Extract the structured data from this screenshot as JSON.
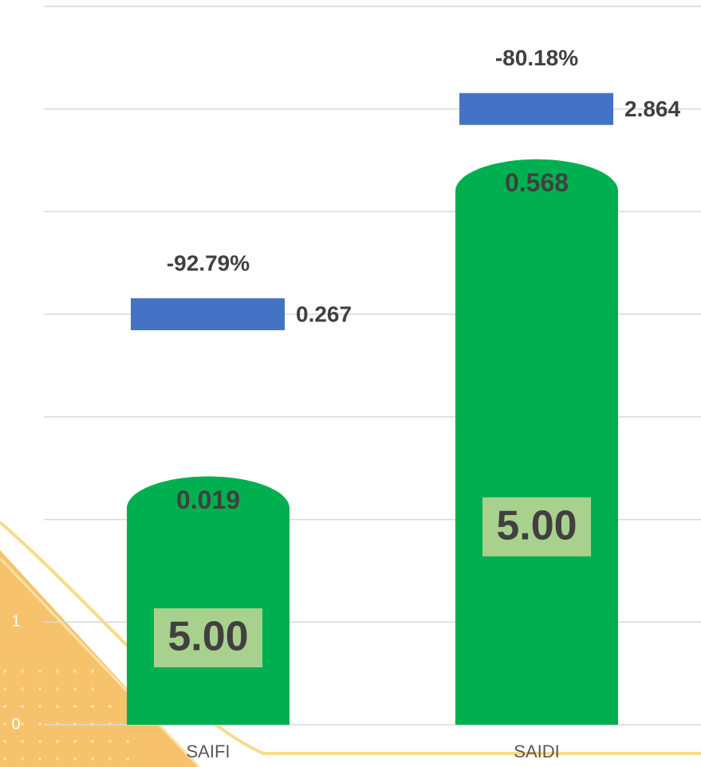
{
  "chart_data": {
    "type": "bar",
    "categories": [
      "SAIFI",
      "SAIDI"
    ],
    "series": [
      {
        "color": "#00b050",
        "values": [
          2.42,
          5.51
        ]
      },
      {
        "color": "#4472c4",
        "values": [
          4.0,
          6.0
        ]
      }
    ],
    "bar_labels": [
      "0.019",
      "0.568"
    ],
    "big_labels": [
      "5.00",
      "5.00"
    ],
    "marker_labels": [
      "0.267",
      "2.864"
    ],
    "change_labels": [
      "-92.79%",
      "-80.18%"
    ],
    "ylim": [
      0,
      7
    ],
    "yticks": [
      0,
      1,
      2,
      3,
      4,
      5,
      6,
      7
    ],
    "grid": true
  }
}
